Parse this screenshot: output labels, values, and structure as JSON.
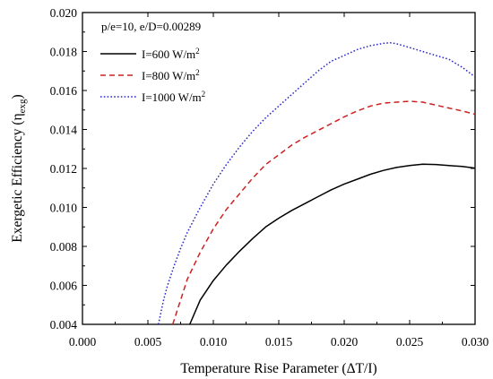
{
  "chart_data": {
    "type": "line",
    "title": "",
    "annotation": "p/e=10, e/D=0.00289",
    "xlabel": "Temperature Rise Parameter (ΔT/I)",
    "ylabel": {
      "main": "Exergetic Efficiency (η",
      "sub": "exg",
      "close": ")"
    },
    "xlim": [
      0.0,
      0.03
    ],
    "ylim": [
      0.004,
      0.02
    ],
    "xticks": [
      "0.000",
      "0.005",
      "0.010",
      "0.015",
      "0.020",
      "0.025",
      "0.030"
    ],
    "yticks": [
      "0.004",
      "0.006",
      "0.008",
      "0.010",
      "0.012",
      "0.014",
      "0.016",
      "0.018",
      "0.020"
    ],
    "grid": false,
    "legend_position": "top-left",
    "series": [
      {
        "name": "I=600 W/m",
        "name_sup": "2",
        "color": "#000000",
        "style": "solid",
        "x": [
          0.0082,
          0.009,
          0.01,
          0.011,
          0.012,
          0.013,
          0.014,
          0.015,
          0.016,
          0.017,
          0.018,
          0.019,
          0.02,
          0.021,
          0.022,
          0.023,
          0.024,
          0.025,
          0.026,
          0.027,
          0.028,
          0.029,
          0.03
        ],
        "y": [
          0.004,
          0.00525,
          0.00625,
          0.00705,
          0.00775,
          0.0084,
          0.009,
          0.00945,
          0.00985,
          0.0102,
          0.01055,
          0.0109,
          0.0112,
          0.01145,
          0.0117,
          0.0119,
          0.01205,
          0.01215,
          0.01222,
          0.0122,
          0.01215,
          0.0121,
          0.01202
        ]
      },
      {
        "name": "I=800 W/m",
        "name_sup": "2",
        "color": "#cc2222",
        "style": "dashed",
        "x": [
          0.0069,
          0.0075,
          0.008,
          0.009,
          0.01,
          0.011,
          0.012,
          0.013,
          0.014,
          0.015,
          0.016,
          0.017,
          0.018,
          0.019,
          0.02,
          0.021,
          0.022,
          0.023,
          0.024,
          0.025,
          0.026,
          0.027,
          0.028,
          0.029,
          0.03
        ],
        "y": [
          0.004,
          0.00525,
          0.0063,
          0.0077,
          0.0089,
          0.0099,
          0.0107,
          0.0115,
          0.0122,
          0.0127,
          0.0132,
          0.0136,
          0.01395,
          0.0143,
          0.01465,
          0.01495,
          0.0152,
          0.01535,
          0.0154,
          0.01545,
          0.0154,
          0.01525,
          0.0151,
          0.01495,
          0.01478
        ]
      },
      {
        "name": "I=1000 W/m",
        "name_sup": "2",
        "color": "#2a2acc",
        "style": "dotted",
        "x": [
          0.0058,
          0.0062,
          0.0065,
          0.007,
          0.0075,
          0.008,
          0.009,
          0.01,
          0.011,
          0.012,
          0.013,
          0.014,
          0.015,
          0.016,
          0.017,
          0.018,
          0.019,
          0.02,
          0.021,
          0.022,
          0.023,
          0.0235,
          0.024,
          0.025,
          0.026,
          0.027,
          0.028,
          0.029,
          0.03
        ],
        "y": [
          0.004,
          0.00525,
          0.006,
          0.007,
          0.0079,
          0.0087,
          0.01,
          0.0112,
          0.0122,
          0.0131,
          0.0139,
          0.0146,
          0.0152,
          0.0158,
          0.0164,
          0.017,
          0.0175,
          0.0178,
          0.0181,
          0.0183,
          0.01842,
          0.01845,
          0.0184,
          0.0182,
          0.018,
          0.0178,
          0.0176,
          0.0172,
          0.0167
        ]
      }
    ]
  }
}
